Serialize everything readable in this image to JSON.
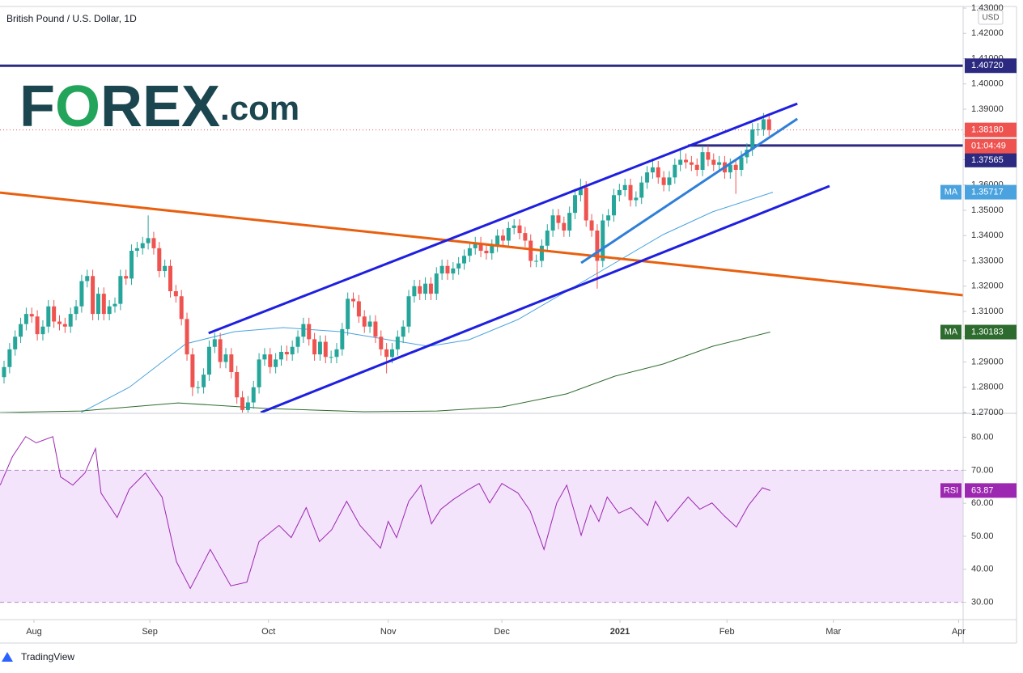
{
  "chart_data": {
    "type": "candlestick",
    "title": "British Pound / U.S. Dollar, 1D",
    "currency": "USD",
    "logo": {
      "parts": [
        "F",
        "O",
        "REX",
        ".com"
      ],
      "dark_color": "#1b4650",
      "accent_color": "#22a55b"
    },
    "footer": "TradingView",
    "xlim": [
      -0.73,
      173
    ],
    "xticks": [
      {
        "value": 5.4,
        "label": "Aug"
      },
      {
        "value": 26.3,
        "label": "Sep"
      },
      {
        "value": 47.7,
        "label": "Oct"
      },
      {
        "value": 69.3,
        "label": "Nov"
      },
      {
        "value": 89.8,
        "label": "Dec"
      },
      {
        "value": 111.1,
        "label": "2021"
      },
      {
        "value": 130.4,
        "label": "Feb"
      },
      {
        "value": 149.6,
        "label": "Mar"
      },
      {
        "value": 172.2,
        "label": "Apr"
      }
    ],
    "ylim": [
      1.27,
      1.43
    ],
    "yticks": [
      {
        "value": 1.27,
        "label": "1.27000"
      },
      {
        "value": 1.28,
        "label": "1.28000"
      },
      {
        "value": 1.29,
        "label": "1.29000"
      },
      {
        "value": 1.3,
        "label": "1.30000"
      },
      {
        "value": 1.31,
        "label": "1.31000"
      },
      {
        "value": 1.32,
        "label": "1.32000"
      },
      {
        "value": 1.33,
        "label": "1.33000"
      },
      {
        "value": 1.34,
        "label": "1.34000"
      },
      {
        "value": 1.35,
        "label": "1.35000"
      },
      {
        "value": 1.36,
        "label": "1.36000"
      },
      {
        "value": 1.37,
        "label": "1.37000"
      },
      {
        "value": 1.38,
        "label": "1.38000"
      },
      {
        "value": 1.39,
        "label": "1.39000"
      },
      {
        "value": 1.4,
        "label": "1.40000"
      },
      {
        "value": 1.41,
        "label": "1.41000"
      },
      {
        "value": 1.42,
        "label": "1.42000"
      },
      {
        "value": 1.43,
        "label": "1.43000"
      }
    ],
    "grid": false,
    "candles": {
      "up_color": "#26a69a",
      "down_color": "#ef5350",
      "open": [
        1.284,
        1.288,
        1.295,
        1.3,
        1.305,
        1.309,
        1.308,
        1.301,
        1.304,
        1.312,
        1.306,
        1.305,
        1.304,
        1.309,
        1.312,
        1.322,
        1.324,
        1.309,
        1.317,
        1.309,
        1.312,
        1.313,
        1.324,
        1.323,
        1.334,
        1.335,
        1.337,
        1.339,
        1.335,
        1.326,
        1.328,
        1.318,
        1.316,
        1.307,
        1.293,
        1.28,
        1.28,
        1.285,
        1.296,
        1.299,
        1.29,
        1.293,
        1.286,
        1.276,
        1.271,
        1.274,
        1.28,
        1.291,
        1.293,
        1.288,
        1.291,
        1.294,
        1.293,
        1.296,
        1.3,
        1.305,
        1.299,
        1.293,
        1.298,
        1.292,
        1.292,
        1.295,
        1.303,
        1.315,
        1.314,
        1.308,
        1.304,
        1.306,
        1.3,
        1.295,
        1.292,
        1.295,
        1.3,
        1.304,
        1.316,
        1.32,
        1.317,
        1.321,
        1.317,
        1.325,
        1.328,
        1.325,
        1.327,
        1.329,
        1.332,
        1.335,
        1.337,
        1.334,
        1.333,
        1.336,
        1.34,
        1.338,
        1.343,
        1.344,
        1.341,
        1.338,
        1.33,
        1.33,
        1.336,
        1.342,
        1.348,
        1.345,
        1.342,
        1.349,
        1.356,
        1.359,
        1.346,
        1.342,
        1.33,
        1.346,
        1.348,
        1.356,
        1.358,
        1.36,
        1.354,
        1.355,
        1.361,
        1.365,
        1.367,
        1.363,
        1.36,
        1.363,
        1.368,
        1.37,
        1.369,
        1.368,
        1.366,
        1.373,
        1.37,
        1.368,
        1.369,
        1.365,
        1.368,
        1.366,
        1.371,
        1.374,
        1.382,
        1.382,
        1.386
      ],
      "high": [
        1.2905,
        1.2975,
        1.3025,
        1.3075,
        1.3115,
        1.3115,
        1.3105,
        1.3065,
        1.3145,
        1.3145,
        1.3085,
        1.3075,
        1.3115,
        1.3145,
        1.3245,
        1.3265,
        1.3265,
        1.3195,
        1.3195,
        1.3145,
        1.3155,
        1.3265,
        1.3265,
        1.3365,
        1.3375,
        1.3395,
        1.348,
        1.3415,
        1.3375,
        1.3305,
        1.3305,
        1.3205,
        1.3185,
        1.3095,
        1.2955,
        1.2825,
        1.2875,
        1.2985,
        1.3015,
        1.3015,
        1.2955,
        1.2955,
        1.2885,
        1.2785,
        1.2765,
        1.2825,
        1.2935,
        1.2955,
        1.2955,
        1.2935,
        1.2965,
        1.2965,
        1.2985,
        1.3025,
        1.3075,
        1.3075,
        1.3015,
        1.3005,
        1.3005,
        1.2945,
        1.2975,
        1.3055,
        1.3175,
        1.3175,
        1.3165,
        1.3105,
        1.3085,
        1.3085,
        1.3025,
        1.2975,
        1.2975,
        1.3025,
        1.3065,
        1.3185,
        1.3225,
        1.3225,
        1.3235,
        1.3235,
        1.3275,
        1.3305,
        1.3305,
        1.3295,
        1.3315,
        1.3345,
        1.3375,
        1.3395,
        1.3395,
        1.3365,
        1.3385,
        1.3425,
        1.3425,
        1.3455,
        1.3465,
        1.3465,
        1.3435,
        1.3405,
        1.3325,
        1.3385,
        1.3445,
        1.3505,
        1.3505,
        1.3475,
        1.3515,
        1.3585,
        1.3625,
        1.3615,
        1.3485,
        1.3445,
        1.3485,
        1.3505,
        1.3585,
        1.3605,
        1.3625,
        1.3625,
        1.3575,
        1.3635,
        1.3675,
        1.3705,
        1.3695,
        1.3655,
        1.3655,
        1.3705,
        1.3745,
        1.3725,
        1.3715,
        1.3705,
        1.3755,
        1.3755,
        1.3725,
        1.3715,
        1.3715,
        1.3705,
        1.3705,
        1.3735,
        1.3765,
        1.3845,
        1.3845,
        1.3885,
        1.3875
      ],
      "low": [
        1.2815,
        1.2855,
        1.2925,
        1.2975,
        1.3025,
        1.3055,
        1.2985,
        1.2985,
        1.3015,
        1.3035,
        1.3025,
        1.3015,
        1.3015,
        1.3065,
        1.3095,
        1.3195,
        1.3065,
        1.3065,
        1.3065,
        1.3065,
        1.3095,
        1.3105,
        1.3205,
        1.3205,
        1.3315,
        1.3325,
        1.3345,
        1.3325,
        1.3235,
        1.3235,
        1.3155,
        1.3135,
        1.3045,
        1.2905,
        1.2765,
        1.2775,
        1.2775,
        1.2825,
        1.2935,
        1.2875,
        1.2875,
        1.2835,
        1.2735,
        1.2685,
        1.2685,
        1.2715,
        1.2775,
        1.2885,
        1.2855,
        1.2855,
        1.2885,
        1.2905,
        1.2905,
        1.2935,
        1.2975,
        1.2965,
        1.2905,
        1.2905,
        1.2895,
        1.2895,
        1.2895,
        1.2925,
        1.3005,
        1.3115,
        1.3055,
        1.3015,
        1.3015,
        1.2975,
        1.2925,
        1.2855,
        1.2895,
        1.2925,
        1.2975,
        1.3015,
        1.3135,
        1.3145,
        1.3145,
        1.3145,
        1.3145,
        1.3225,
        1.3225,
        1.3225,
        1.3245,
        1.3265,
        1.3295,
        1.3325,
        1.3315,
        1.3305,
        1.3305,
        1.3335,
        1.3355,
        1.3355,
        1.3405,
        1.3385,
        1.3355,
        1.3275,
        1.3275,
        1.3275,
        1.3335,
        1.3395,
        1.3425,
        1.3395,
        1.3395,
        1.3465,
        1.3535,
        1.3435,
        1.3395,
        1.319,
        1.3275,
        1.3435,
        1.3455,
        1.3535,
        1.3555,
        1.3515,
        1.3515,
        1.3525,
        1.3585,
        1.3625,
        1.3605,
        1.3575,
        1.3575,
        1.3605,
        1.3655,
        1.3665,
        1.3655,
        1.3635,
        1.3635,
        1.3675,
        1.3655,
        1.3655,
        1.3625,
        1.3625,
        1.3565,
        1.3635,
        1.3685,
        1.3715,
        1.3795,
        1.3795,
        1.3795
      ],
      "close": [
        1.288,
        1.295,
        1.3,
        1.305,
        1.309,
        1.308,
        1.301,
        1.304,
        1.312,
        1.306,
        1.305,
        1.304,
        1.309,
        1.312,
        1.322,
        1.324,
        1.309,
        1.317,
        1.309,
        1.312,
        1.313,
        1.324,
        1.323,
        1.334,
        1.335,
        1.337,
        1.339,
        1.335,
        1.326,
        1.328,
        1.318,
        1.316,
        1.307,
        1.293,
        1.28,
        1.28,
        1.285,
        1.296,
        1.299,
        1.29,
        1.293,
        1.286,
        1.276,
        1.271,
        1.274,
        1.28,
        1.291,
        1.293,
        1.288,
        1.291,
        1.294,
        1.293,
        1.296,
        1.3,
        1.305,
        1.299,
        1.293,
        1.298,
        1.292,
        1.292,
        1.295,
        1.303,
        1.315,
        1.314,
        1.308,
        1.304,
        1.306,
        1.3,
        1.295,
        1.292,
        1.295,
        1.3,
        1.304,
        1.316,
        1.32,
        1.317,
        1.321,
        1.317,
        1.325,
        1.328,
        1.325,
        1.327,
        1.329,
        1.332,
        1.335,
        1.337,
        1.334,
        1.333,
        1.336,
        1.34,
        1.338,
        1.343,
        1.344,
        1.341,
        1.338,
        1.33,
        1.33,
        1.336,
        1.342,
        1.348,
        1.345,
        1.342,
        1.349,
        1.356,
        1.359,
        1.346,
        1.342,
        1.33,
        1.346,
        1.348,
        1.356,
        1.358,
        1.36,
        1.354,
        1.355,
        1.361,
        1.365,
        1.367,
        1.363,
        1.36,
        1.363,
        1.368,
        1.37,
        1.369,
        1.368,
        1.366,
        1.373,
        1.37,
        1.368,
        1.369,
        1.365,
        1.368,
        1.366,
        1.371,
        1.374,
        1.382,
        1.382,
        1.386,
        1.3818
      ]
    },
    "current_price": {
      "value": 1.3818,
      "label": "1.38180",
      "countdown": "01:04:49",
      "color": "#ef5350"
    },
    "levels": [
      {
        "value": 1.4072,
        "label": "1.40720",
        "color": "#2c2a80",
        "x_start": -0.73
      },
      {
        "value": 1.37565,
        "label": "1.37565",
        "color": "#2c2a80",
        "x_start": 123.4
      }
    ],
    "trendlines": [
      {
        "color": "#e8600f",
        "x": [
          -0.73,
          173
        ],
        "values": [
          1.357,
          1.3164
        ]
      },
      {
        "color": "#1f1fe0",
        "x": [
          36.9,
          143.1
        ],
        "values": [
          1.3014,
          1.3922
        ]
      },
      {
        "color": "#1f1fe0",
        "x": [
          46.3,
          148.9
        ],
        "values": [
          1.27,
          1.3596
        ]
      },
      {
        "color": "#2f7fd8",
        "x": [
          104.1,
          143.1
        ],
        "values": [
          1.3292,
          1.3862
        ]
      }
    ],
    "moving_averages": [
      {
        "name": "MA",
        "color": "#4aa3df",
        "value_label": "1.35717",
        "x": [
          13.9,
          22.6,
          32.8,
          41.6,
          50.4,
          60.6,
          69.3,
          76.6,
          83.9,
          92.7,
          101.5,
          110.2,
          118.9,
          127.8,
          138.7
        ],
        "values": [
          1.27,
          1.28,
          1.2972,
          1.302,
          1.3036,
          1.302,
          1.2988,
          1.2962,
          1.2988,
          1.3068,
          1.318,
          1.3292,
          1.3404,
          1.3494,
          1.35717
        ]
      },
      {
        "name": "MA",
        "color": "#2e6b2e",
        "value_label": "1.30183",
        "x": [
          -0.73,
          13.9,
          31.4,
          47.4,
          64.9,
          78.1,
          89.8,
          101.5,
          110.2,
          118.9,
          127.8,
          138.2
        ],
        "values": [
          1.27,
          1.2706,
          1.2738,
          1.2716,
          1.2703,
          1.2706,
          1.2722,
          1.2774,
          1.2844,
          1.2892,
          1.2962,
          1.30183
        ]
      }
    ],
    "rsi": {
      "name": "RSI",
      "color": "#9c27b0",
      "band_color": "#f3e3fb",
      "value_label": "63.87",
      "ylim": [
        25,
        87
      ],
      "band": [
        30,
        70
      ],
      "yticks": [
        {
          "value": 30,
          "label": "30.00"
        },
        {
          "value": 40,
          "label": "40.00"
        },
        {
          "value": 50,
          "label": "50.00"
        },
        {
          "value": 60,
          "label": "60.00"
        },
        {
          "value": 70,
          "label": "70.00"
        },
        {
          "value": 80,
          "label": "80.00"
        }
      ],
      "x": [
        -0.7,
        1.5,
        3.9,
        5.8,
        8.8,
        10.2,
        12.4,
        14.6,
        16.5,
        17.5,
        20.4,
        22.6,
        25.5,
        28.5,
        31.1,
        33.6,
        37.2,
        40.9,
        43.8,
        46,
        49.6,
        51.8,
        54.5,
        56.9,
        59.1,
        61.8,
        64.2,
        67.9,
        69.3,
        70.8,
        73,
        75.2,
        77.1,
        78.8,
        81,
        83.9,
        85.7,
        87.6,
        89.8,
        92.7,
        94.9,
        97.4,
        99.7,
        101.5,
        104.1,
        105.8,
        107.3,
        108.8,
        110.9,
        113.1,
        116.1,
        117.5,
        119.7,
        123.4,
        125.5,
        127.7,
        129.9,
        132.1,
        134.3,
        136.8,
        138.2
      ],
      "values": [
        65.5,
        74.1,
        80.2,
        78.3,
        80.2,
        68,
        65.5,
        69.2,
        76.6,
        63.1,
        55.7,
        64.3,
        69.2,
        61.9,
        42.3,
        34.2,
        46,
        35,
        36.1,
        48.4,
        53.3,
        49.6,
        58.7,
        48.4,
        52,
        60.6,
        53.3,
        46.4,
        54.5,
        49.6,
        60.6,
        65.5,
        53.8,
        58.2,
        61.1,
        64.3,
        66,
        60.1,
        66,
        63.1,
        57.7,
        46,
        60.1,
        65.5,
        50.3,
        59.4,
        54.5,
        61.9,
        57,
        58.7,
        53.3,
        60.6,
        54.5,
        61.9,
        58.2,
        60.1,
        56.2,
        52.8,
        59.4,
        64.7,
        63.87
      ]
    }
  }
}
